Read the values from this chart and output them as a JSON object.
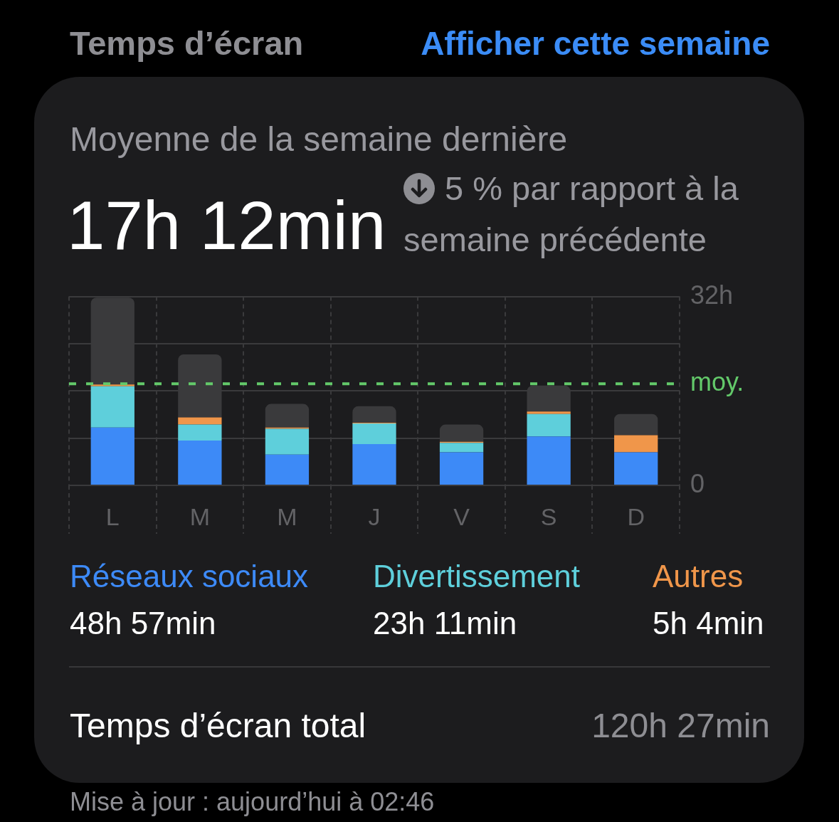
{
  "chart_data": {
    "type": "bar",
    "title": "Temps d’écran",
    "subtitle": "Moyenne de la semaine dernière",
    "categories": [
      "L",
      "M",
      "M",
      "J",
      "V",
      "S",
      "D"
    ],
    "series": [
      {
        "name": "Réseaux sociaux",
        "color": "#3d8af7",
        "values": [
          9.8,
          7.6,
          5.2,
          7.0,
          5.6,
          8.3,
          5.6
        ]
      },
      {
        "name": "Divertissement",
        "color": "#5ecfdb",
        "values": [
          7.0,
          2.7,
          4.4,
          3.5,
          1.6,
          3.8,
          0
        ]
      },
      {
        "name": "Autres",
        "color": "#f0964a",
        "values": [
          0.3,
          1.2,
          0.2,
          0.1,
          0.2,
          0.4,
          2.9
        ]
      },
      {
        "color": "#3a3a3c",
        "values": [
          14.7,
          10.7,
          4.0,
          2.8,
          2.9,
          4.4,
          3.6
        ]
      }
    ],
    "stacked": true,
    "ylim": [
      0,
      32
    ],
    "yticks": [
      0,
      {
        "value": 8,
        "label": null
      },
      {
        "value": 16,
        "label": null
      },
      {
        "value": 24,
        "label": null
      },
      {
        "value": 32,
        "label": "32h"
      }
    ],
    "grid": true,
    "legend": "bottom",
    "ref_lines": [
      {
        "axis": "y",
        "value": 17.2,
        "label": "moy.",
        "color": "#63c96a",
        "line_style": "dashed"
      }
    ],
    "annotations": [
      "Afficher cette semaine",
      "17h 12min",
      "5 % par rapport à la semaine précédente",
      "48h 57min",
      "23h 11min",
      "5h 4min",
      "Temps d’écran total",
      "120h 27min",
      "Mise à jour : aujourd’hui à 02:46"
    ]
  }
}
